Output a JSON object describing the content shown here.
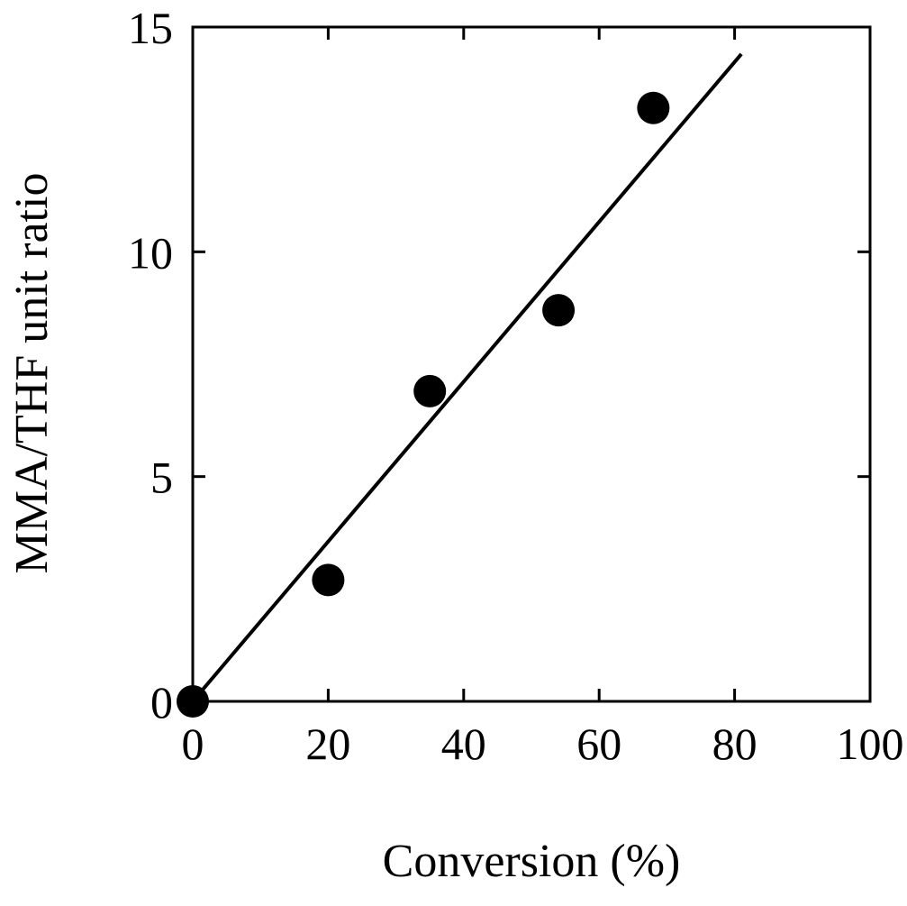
{
  "chart_data": {
    "type": "scatter",
    "title": "",
    "xlabel": "Conversion (%)",
    "ylabel": "MMA/THF unit ratio",
    "xlim": [
      0,
      100
    ],
    "ylim": [
      0,
      15
    ],
    "x_ticks": [
      0,
      20,
      40,
      60,
      80,
      100
    ],
    "y_ticks": [
      0,
      5,
      10,
      15
    ],
    "x_tick_labels": [
      "0",
      "20",
      "40",
      "60",
      "80",
      "100"
    ],
    "y_tick_labels": [
      "0",
      "5",
      "10",
      "15"
    ],
    "grid": false,
    "legend": "none",
    "series": [
      {
        "marker": "filled-circle",
        "color": "#000000",
        "x": [
          0,
          20,
          35,
          54,
          68
        ],
        "y": [
          0,
          2.7,
          6.9,
          8.7,
          13.2
        ]
      }
    ],
    "fit_line": {
      "color": "#000000",
      "x": [
        0,
        81
      ],
      "y": [
        0,
        14.4
      ]
    }
  }
}
